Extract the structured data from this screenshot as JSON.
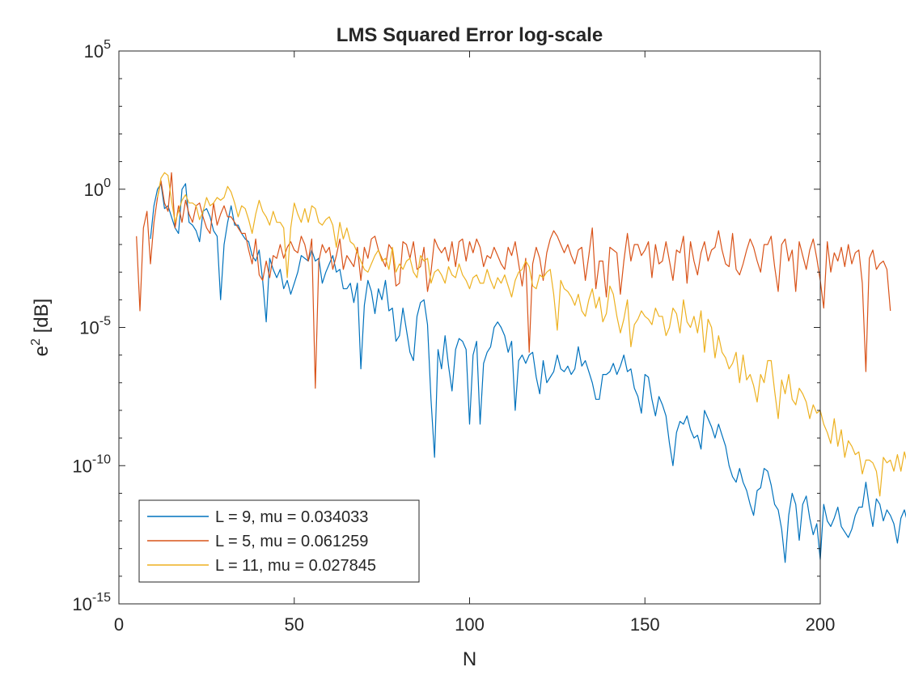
{
  "chart_data": {
    "type": "line",
    "title": "LMS Squared Error log-scale",
    "xlabel": "N",
    "ylabel_base": "e",
    "ylabel_sup": "2",
    "ylabel_unit": " [dB]",
    "xlim": [
      0,
      200
    ],
    "ylim": [
      1e-15,
      100000.0
    ],
    "yscale": "log",
    "grid": false,
    "legend_position": "bottom-left",
    "x_ticks": [
      {
        "value": 0,
        "label": "0"
      },
      {
        "value": 50,
        "label": "50"
      },
      {
        "value": 100,
        "label": "100"
      },
      {
        "value": 150,
        "label": "150"
      },
      {
        "value": 200,
        "label": "200"
      }
    ],
    "y_ticks": [
      {
        "value": 100000.0,
        "base": "10",
        "exp": "5"
      },
      {
        "value": 1,
        "base": "10",
        "exp": "0"
      },
      {
        "value": 1e-05,
        "base": "10",
        "exp": "-5"
      },
      {
        "value": 1e-10,
        "base": "10",
        "exp": "-10"
      },
      {
        "value": 1e-15,
        "base": "10",
        "exp": "-15"
      }
    ],
    "series": [
      {
        "name": "L = 9, mu = 0.034033",
        "color": "#0072bd",
        "x_start": 9,
        "x_step": 1,
        "log10_y": [
          -1.8,
          -0.6,
          0.0,
          0.2,
          -0.7,
          -0.6,
          -1.0,
          -1.4,
          -1.6,
          0.0,
          0.2,
          -1.2,
          -1.3,
          -1.5,
          -1.9,
          -0.8,
          -0.7,
          -1.0,
          -1.5,
          -1.7,
          -4.0,
          -2.0,
          -1.2,
          -0.6,
          -1.3,
          -1.3,
          -1.6,
          -1.8,
          -1.9,
          -2.4,
          -2.6,
          -2.2,
          -3.3,
          -4.8,
          -2.5,
          -2.9,
          -3.2,
          -2.9,
          -3.6,
          -3.3,
          -3.8,
          -3.4,
          -3.0,
          -2.4,
          -2.5,
          -2.6,
          -2.2,
          -2.6,
          -2.5,
          -3.4,
          -3.0,
          -2.7,
          -2.4,
          -3.0,
          -2.9,
          -3.6,
          -3.6,
          -3.4,
          -4.1,
          -3.4,
          -6.5,
          -4.2,
          -3.3,
          -3.7,
          -4.5,
          -3.6,
          -4.0,
          -3.3,
          -4.4,
          -4.3,
          -5.5,
          -5.3,
          -4.3,
          -5.1,
          -5.9,
          -6.2,
          -4.6,
          -4.1,
          -4.0,
          -4.9,
          -7.6,
          -9.7,
          -5.8,
          -6.5,
          -5.3,
          -6.4,
          -7.3,
          -5.8,
          -5.4,
          -5.5,
          -5.8,
          -8.5,
          -6.0,
          -5.5,
          -8.5,
          -6.3,
          -5.9,
          -5.7,
          -5.0,
          -4.8,
          -5.0,
          -5.3,
          -5.9,
          -5.5,
          -8.0,
          -6.2,
          -6.0,
          -6.3,
          -6.0,
          -5.9,
          -6.8,
          -7.4,
          -6.2,
          -7.0,
          -6.8,
          -6.6,
          -6.0,
          -6.5,
          -6.6,
          -6.4,
          -6.7,
          -6.5,
          -5.7,
          -6.4,
          -6.2,
          -6.6,
          -7.0,
          -7.6,
          -7.6,
          -6.7,
          -6.7,
          -6.6,
          -6.3,
          -6.7,
          -6.4,
          -6.0,
          -6.6,
          -6.5,
          -7.2,
          -7.5,
          -8.1,
          -6.7,
          -6.8,
          -7.6,
          -8.2,
          -7.5,
          -7.8,
          -8.2,
          -9.2,
          -10.0,
          -8.8,
          -8.4,
          -8.5,
          -8.2,
          -8.7,
          -9.0,
          -8.9,
          -9.4,
          -8.0,
          -8.3,
          -8.6,
          -9.0,
          -8.5,
          -8.9,
          -9.3,
          -10.0,
          -10.4,
          -10.6,
          -10.1,
          -10.6,
          -10.9,
          -11.4,
          -11.8,
          -10.9,
          -10.8,
          -10.1,
          -10.2,
          -10.7,
          -11.4,
          -11.6,
          -12.3,
          -13.5,
          -11.8,
          -11.0,
          -11.4,
          -12.7,
          -11.4,
          -11.1,
          -11.9,
          -12.5,
          -12.1,
          -13.4,
          -11.4,
          -12.0,
          -12.2,
          -11.9,
          -11.5,
          -12.2,
          -12.4,
          -12.6,
          -12.3,
          -11.8,
          -11.5,
          -11.5,
          -10.6,
          -11.5,
          -12.2,
          -11.2,
          -11.4,
          -12.0,
          -11.6,
          -11.8,
          -12.1,
          -12.8,
          -11.9,
          -11.6,
          -12.1,
          -13.2
        ]
      },
      {
        "name": "L = 5, mu = 0.061259",
        "color": "#d95319",
        "x_start": 5,
        "x_step": 1,
        "log10_y": [
          -1.7,
          -4.4,
          -1.4,
          -0.8,
          -2.7,
          -1.2,
          -0.3,
          0.3,
          -0.5,
          -0.8,
          0.6,
          -1.4,
          -0.6,
          -1.2,
          -0.4,
          -0.9,
          -1.2,
          -0.6,
          -0.5,
          -1.0,
          -1.4,
          -1.6,
          -0.5,
          -1.3,
          -0.9,
          -0.6,
          -1.0,
          -1.0,
          -1.2,
          -1.4,
          -1.6,
          -1.6,
          -2.2,
          -2.7,
          -1.8,
          -3.1,
          -3.3,
          -2.6,
          -3.2,
          -2.4,
          -2.5,
          -2.0,
          -2.5,
          -2.1,
          -1.9,
          -2.2,
          -2.3,
          -1.7,
          -2.0,
          -2.6,
          -1.8,
          -7.2,
          -2.6,
          -2.0,
          -2.3,
          -2.1,
          -2.9,
          -2.4,
          -1.8,
          -2.9,
          -2.4,
          -2.6,
          -2.8,
          -2.1,
          -3.3,
          -2.1,
          -2.5,
          -1.8,
          -1.7,
          -2.2,
          -2.5,
          -2.8,
          -2.0,
          -2.2,
          -3.5,
          -3.4,
          -1.9,
          -2.0,
          -2.5,
          -1.9,
          -2.9,
          -2.8,
          -2.1,
          -3.7,
          -3.0,
          -1.8,
          -2.1,
          -2.3,
          -2.1,
          -2.6,
          -1.9,
          -2.8,
          -1.9,
          -1.8,
          -2.6,
          -1.9,
          -2.3,
          -1.8,
          -2.1,
          -2.8,
          -2.4,
          -2.5,
          -2.1,
          -2.4,
          -2.7,
          -2.9,
          -2.1,
          -2.4,
          -1.9,
          -2.7,
          -3.5,
          -2.5,
          -5.9,
          -2.7,
          -2.1,
          -2.5,
          -3.3,
          -2.3,
          -1.8,
          -1.5,
          -1.7,
          -2.0,
          -2.3,
          -2.0,
          -2.4,
          -2.7,
          -2.2,
          -2.1,
          -3.3,
          -2.4,
          -1.4,
          -3.6,
          -2.6,
          -2.6,
          -3.9,
          -2.1,
          -2.2,
          -2.3,
          -3.8,
          -2.6,
          -1.6,
          -2.6,
          -2.0,
          -2.0,
          -2.4,
          -2.2,
          -1.9,
          -3.2,
          -2.0,
          -2.7,
          -2.6,
          -1.9,
          -2.6,
          -3.3,
          -2.2,
          -2.3,
          -1.7,
          -3.4,
          -1.9,
          -2.6,
          -3.1,
          -2.3,
          -1.9,
          -2.6,
          -2.2,
          -2.1,
          -1.5,
          -2.2,
          -2.7,
          -2.8,
          -1.6,
          -2.9,
          -3.1,
          -2.7,
          -2.2,
          -1.8,
          -2.1,
          -2.6,
          -3.0,
          -2.0,
          -2.0,
          -1.7,
          -2.8,
          -3.7,
          -2.0,
          -1.8,
          -2.6,
          -2.2,
          -3.7,
          -1.9,
          -2.4,
          -2.9,
          -2.2,
          -1.8,
          -2.5,
          -3.3,
          -4.3,
          -1.9,
          -3.0,
          -2.3,
          -2.6,
          -2.1,
          -2.8,
          -2.0,
          -2.7,
          -2.3,
          -2.2,
          -3.4,
          -6.6,
          -2.5,
          -2.2,
          -2.9,
          -2.7,
          -2.6,
          -2.9,
          -4.4
        ]
      },
      {
        "name": "L = 11, mu = 0.027845",
        "color": "#edb120",
        "x_start": 11,
        "x_step": 1,
        "log10_y": [
          -0.3,
          0.4,
          0.6,
          0.5,
          -0.4,
          -1.2,
          -0.8,
          -0.4,
          -0.2,
          -0.5,
          -0.5,
          -0.6,
          -1.1,
          -0.8,
          -0.3,
          -0.6,
          -0.5,
          -0.3,
          -0.4,
          -0.3,
          0.1,
          -0.1,
          -0.5,
          -1.0,
          -0.6,
          -0.7,
          -1.1,
          -1.6,
          -0.9,
          -0.4,
          -0.8,
          -1.0,
          -1.3,
          -0.8,
          -1.2,
          -1.2,
          -1.4,
          -3.2,
          -1.4,
          -0.5,
          -0.9,
          -1.2,
          -0.7,
          -1.2,
          -0.6,
          -0.7,
          -1.2,
          -1.3,
          -1.1,
          -1.0,
          -1.3,
          -2.1,
          -1.2,
          -1.8,
          -1.4,
          -1.9,
          -2.0,
          -2.3,
          -2.6,
          -2.9,
          -3.0,
          -2.7,
          -2.4,
          -2.2,
          -2.6,
          -2.5,
          -2.9,
          -2.1,
          -3.0,
          -2.7,
          -2.9,
          -2.6,
          -2.5,
          -3.0,
          -3.2,
          -2.4,
          -2.6,
          -2.5,
          -3.4,
          -3.0,
          -2.9,
          -3.1,
          -3.4,
          -2.8,
          -3.1,
          -3.2,
          -2.7,
          -3.1,
          -3.3,
          -3.6,
          -3.2,
          -3.1,
          -3.4,
          -3.4,
          -2.9,
          -3.3,
          -3.6,
          -3.2,
          -3.4,
          -3.1,
          -3.5,
          -3.9,
          -3.3,
          -3.0,
          -2.9,
          -2.6,
          -2.8,
          -3.5,
          -3.6,
          -3.1,
          -3.2,
          -3.0,
          -2.9,
          -3.8,
          -5.1,
          -3.3,
          -3.6,
          -3.7,
          -3.9,
          -4.2,
          -3.8,
          -4.4,
          -4.6,
          -4.0,
          -3.6,
          -4.3,
          -3.9,
          -4.8,
          -4.5,
          -3.5,
          -3.8,
          -4.6,
          -5.2,
          -4.7,
          -4.0,
          -5.7,
          -4.9,
          -4.7,
          -4.4,
          -4.6,
          -4.7,
          -4.9,
          -4.3,
          -4.6,
          -4.6,
          -5.3,
          -5.0,
          -4.3,
          -4.5,
          -5.2,
          -4.0,
          -4.8,
          -5.0,
          -4.6,
          -5.2,
          -4.4,
          -5.9,
          -4.7,
          -5.0,
          -6.1,
          -5.3,
          -5.9,
          -6.1,
          -6.5,
          -6.3,
          -5.9,
          -7.0,
          -6.0,
          -6.9,
          -6.7,
          -7.1,
          -7.7,
          -6.7,
          -7.0,
          -6.2,
          -6.2,
          -7.3,
          -8.3,
          -6.9,
          -7.4,
          -6.7,
          -7.6,
          -7.8,
          -7.2,
          -7.4,
          -7.7,
          -8.3,
          -7.8,
          -8.1,
          -8.0,
          -8.5,
          -8.8,
          -9.2,
          -8.3,
          -9.3,
          -8.7,
          -9.7,
          -9.1,
          -9.3,
          -9.6,
          -9.5,
          -10.3,
          -9.8,
          -9.8,
          -9.9,
          -10.2,
          -11.1,
          -9.7,
          -9.9,
          -9.8,
          -10.2,
          -9.6,
          -10.2,
          -9.5,
          -10.0
        ]
      }
    ]
  }
}
